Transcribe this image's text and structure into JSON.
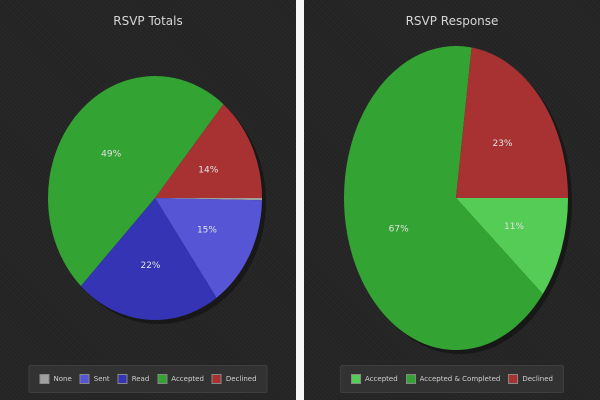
{
  "chart_data": [
    {
      "type": "pie",
      "title": "RSVP Totals",
      "start_angle_deg": 0,
      "slices": [
        {
          "name": "None",
          "value": 0.3,
          "label": "",
          "color": "#a0a0a0"
        },
        {
          "name": "Sent",
          "value": 15,
          "label": "15%",
          "color": "#5555d6"
        },
        {
          "name": "Read",
          "value": 22,
          "label": "22%",
          "color": "#3434b4"
        },
        {
          "name": "Accepted",
          "value": 49,
          "label": "49%",
          "color": "#33a333"
        },
        {
          "name": "Declined",
          "value": 14,
          "label": "14%",
          "color": "#a83232"
        }
      ],
      "legend": [
        "None",
        "Sent",
        "Read",
        "Accepted",
        "Declined"
      ],
      "legend_position": "bottom"
    },
    {
      "type": "pie",
      "title": "RSVP Response",
      "start_angle_deg": 0,
      "slices": [
        {
          "name": "Accepted",
          "value": 11,
          "label": "11%",
          "color": "#55cc55"
        },
        {
          "name": "Accepted & Completed",
          "value": 67,
          "label": "67%",
          "color": "#33a333"
        },
        {
          "name": "Declined",
          "value": 23,
          "label": "23%",
          "color": "#a83232"
        }
      ],
      "legend": [
        "Accepted",
        "Accepted & Completed",
        "Declined"
      ],
      "legend_position": "bottom"
    }
  ]
}
